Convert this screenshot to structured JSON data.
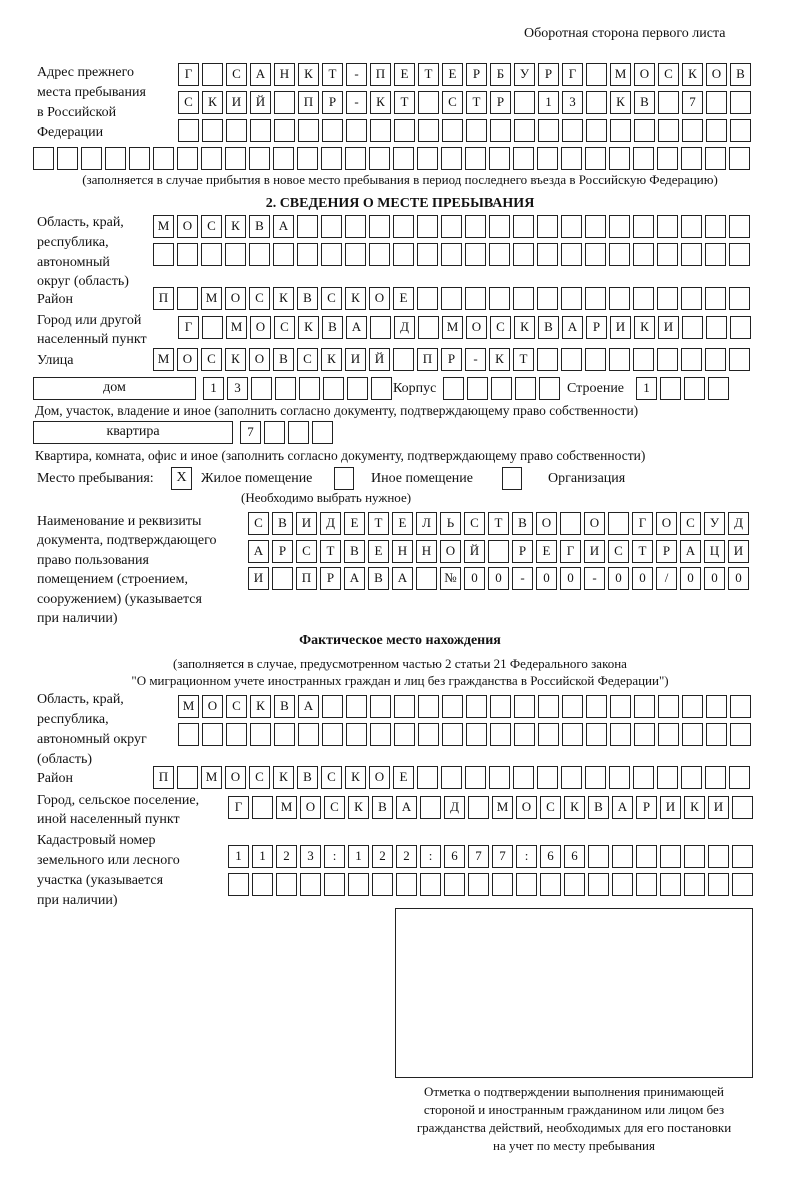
{
  "header": "Оборотная сторона первого листа",
  "prev_address": {
    "label": [
      "Адрес прежнего",
      "места пребывания",
      "в Российской",
      "Федерации"
    ],
    "rows": [
      "Г САНКТ-ПЕТЕРБУРГ МОСКОВ",
      "СКИЙ ПР-КТ СТР 13 КВ 7",
      "",
      ""
    ],
    "note": "(заполняется в случае прибытия в новое место пребывания в период последнего въезда в Российскую Федерацию)"
  },
  "section2": {
    "title": "2. СВЕДЕНИЯ О МЕСТЕ ПРЕБЫВАНИЯ",
    "region_label": [
      "Область, край,",
      "республика,",
      "автономный",
      "округ (область)"
    ],
    "region_rows": [
      "МОСКВА",
      ""
    ],
    "district_label": "Район",
    "district": "П МОСКВСКОЕ",
    "city_label": [
      "Город или другой",
      "населенный пункт"
    ],
    "city": "Г МОСКВА Д МОСКВАРИКИ",
    "street_label": "Улица",
    "street": "МОСКОВСКИЙ ПР-КТ",
    "house_type": "дом",
    "house": "13",
    "korpus_label": "Корпус",
    "korpus": "",
    "building_label": "Строение",
    "building": "1",
    "house_note": "Дом, участок, владение и иное (заполнить согласно документу, подтверждающему право собственности)",
    "flat_type": "квартира",
    "flat": "7",
    "flat_note": "Квартира, комната, офис и иное (заполнить согласно документу, подтверждающему право собственности)",
    "stay_label": "Место пребывания:",
    "options": [
      {
        "label": "Жилое помещение",
        "mark": "X"
      },
      {
        "label": "Иное помещение",
        "mark": ""
      },
      {
        "label": "Организация",
        "mark": ""
      }
    ],
    "choose_note": "(Необходимо выбрать нужное)",
    "doc_label": [
      "Наименование и реквизиты",
      "документа, подтверждающего",
      "право пользования",
      "помещением (строением,",
      "сооружением) (указывается",
      "при наличии)"
    ],
    "doc_rows": [
      "СВИДЕТЕЛЬСТВО О ГОСУД",
      "АРСТВЕННОЙ РЕГИСТРАЦИ",
      "И ПРАВА №00-00-00/000"
    ]
  },
  "actual": {
    "title": "Фактическое место нахождения",
    "note": [
      "(заполняется в случае, предусмотренном частью 2 статьи 21 Федерального закона",
      "\"О миграционном учете иностранных граждан и лиц без гражданства в Российской Федерации\")"
    ],
    "region_label": [
      "Область, край,",
      "республика,",
      "автономный округ",
      "(область)"
    ],
    "region_rows": [
      "МОСКВА",
      ""
    ],
    "district_label": "Район",
    "district": "П МОСКВСКОЕ",
    "city_label": [
      "Город, сельское поселение,",
      "иной населенный пункт"
    ],
    "city": "Г МОСКВА Д МОСКВАРИКИ",
    "cadastral_label": [
      "Кадастровый номер",
      "земельного или лесного",
      "участка (указывается",
      "при наличии)"
    ],
    "cadastral_rows": [
      "1123:122:677:66",
      ""
    ]
  },
  "stamp_caption": [
    "Отметка о подтверждении выполнения принимающей",
    "стороной и иностранным гражданином или лицом без",
    "гражданства действий, необходимых для его постановки",
    "на учет по месту пребывания"
  ]
}
